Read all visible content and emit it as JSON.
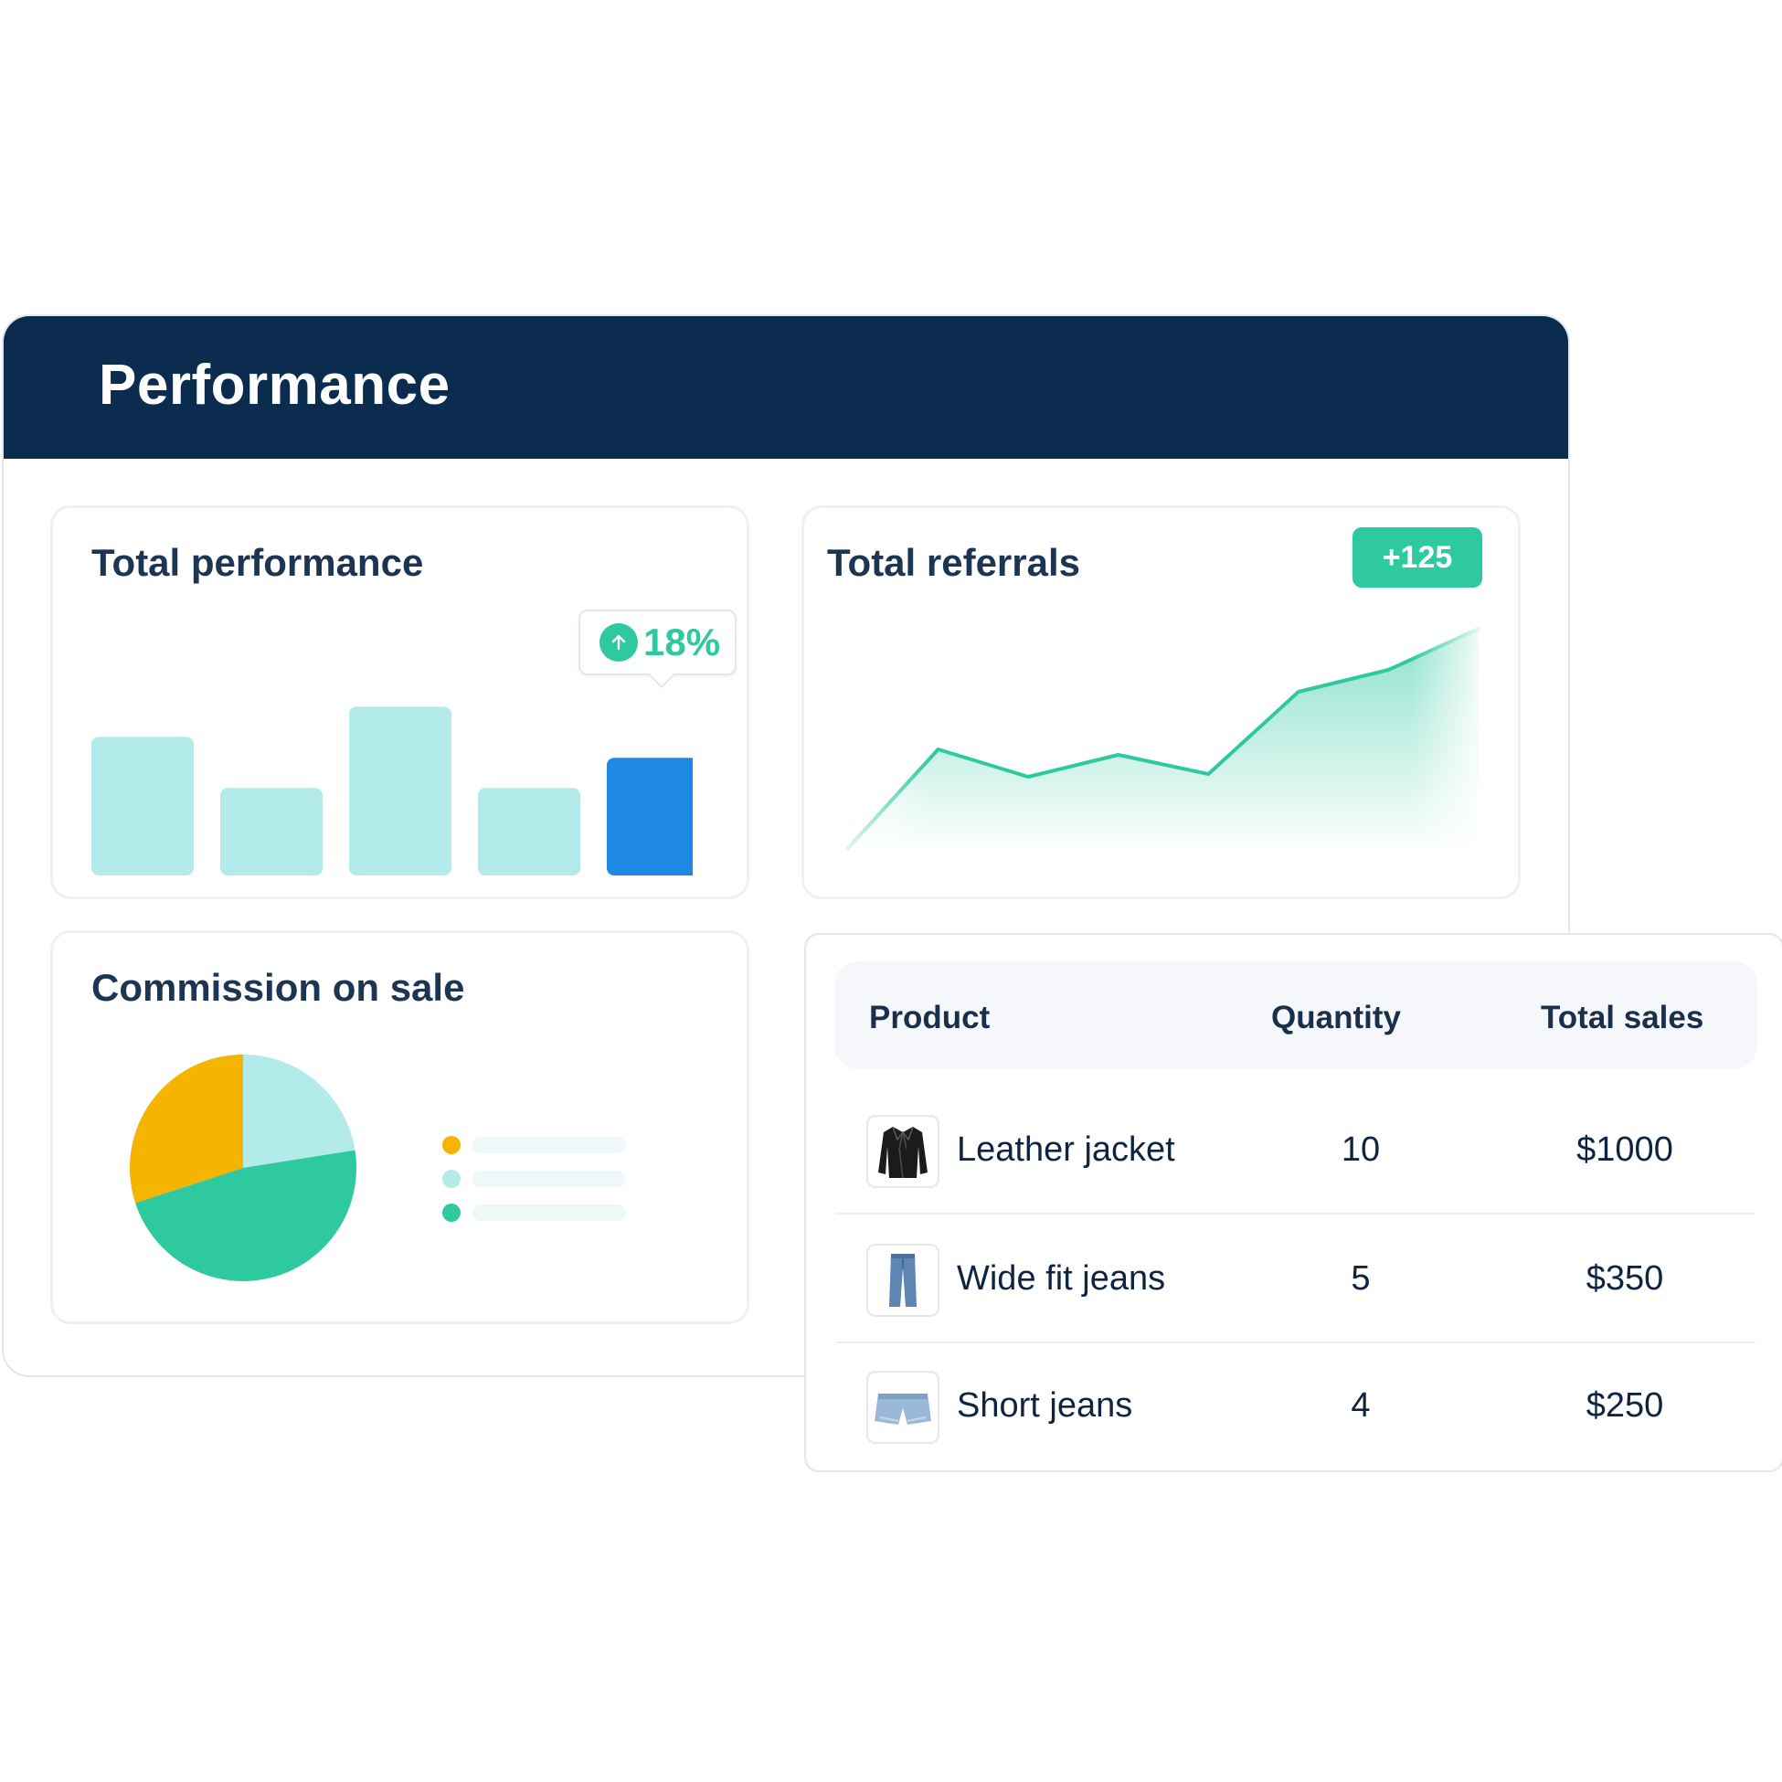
{
  "panel": {
    "title": "Performance"
  },
  "total_performance": {
    "title": "Total performance",
    "badge": {
      "icon": "arrow-up-icon",
      "value": "18%"
    },
    "chart_data": {
      "type": "bar",
      "values": [
        46,
        29,
        56,
        29,
        39
      ],
      "highlight_index": 4,
      "colors": {
        "default": "#b2ebea",
        "highlight": "#1e88e5"
      }
    }
  },
  "total_referrals": {
    "title": "Total referrals",
    "pill": "+125",
    "chart_data": {
      "type": "area",
      "x": [
        0,
        1,
        2,
        3,
        4,
        5,
        6,
        7
      ],
      "values": [
        0,
        36,
        26,
        34,
        27,
        57,
        65,
        80
      ],
      "colors": {
        "line": "#2fc9a0",
        "fill": "#2fc9a0"
      }
    }
  },
  "commission": {
    "title": "Commission on sale",
    "chart_data": {
      "type": "pie",
      "values": [
        22.5,
        47.5,
        30
      ],
      "colors": [
        "#b2ebea",
        "#2fc9a0",
        "#f5b400"
      ]
    },
    "legend_colors": [
      "#f5b400",
      "#b2ebea",
      "#2fc9a0"
    ]
  },
  "table": {
    "headers": {
      "product": "Product",
      "quantity": "Quantity",
      "sales": "Total sales"
    },
    "rows": [
      {
        "icon": "leather-jacket-icon",
        "product": "Leather jacket",
        "quantity": "10",
        "sales": "$1000"
      },
      {
        "icon": "wide-fit-jeans-icon",
        "product": "Wide fit jeans",
        "quantity": "5",
        "sales": "$350"
      },
      {
        "icon": "short-jeans-icon",
        "product": "Short jeans",
        "quantity": "4",
        "sales": "$250"
      }
    ]
  }
}
